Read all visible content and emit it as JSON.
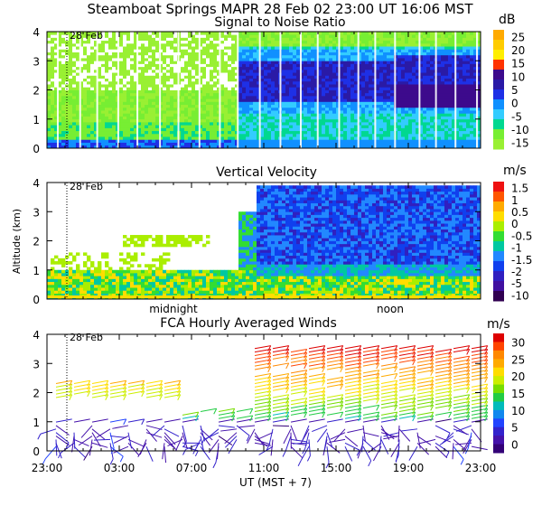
{
  "title": "Steamboat Springs  MAPR 28 Feb 02  23:00 UT  16:06  MST",
  "date_marker": "28 Feb",
  "x_axis": {
    "label": "UT  (MST + 7)",
    "ticks": [
      "23:00",
      "03:00",
      "07:00",
      "11:00",
      "15:00",
      "19:00",
      "23:00"
    ],
    "tick_hours": [
      0,
      4,
      8,
      12,
      16,
      20,
      24
    ],
    "local_labels": [
      "midnight",
      "noon"
    ],
    "local_hours": [
      7,
      19
    ],
    "range_hours": [
      0,
      24
    ],
    "date_marker_hour": 1.25
  },
  "chart_data": [
    {
      "type": "heatmap",
      "title": "Signal to Noise Ratio",
      "ylabel": "",
      "units": "dB",
      "ylim": [
        0,
        4
      ],
      "yticks": [
        "0",
        "1",
        "2",
        "3",
        "4"
      ],
      "colorbar": {
        "labels": [
          "25",
          "20",
          "15",
          "10",
          "5",
          "0",
          "-5",
          "-10",
          "-15"
        ],
        "colors": [
          "#ffaa00",
          "#ffcc00",
          "#ffee00",
          "#ff3300",
          "#3d0a8c",
          "#2a1aa6",
          "#1e30e6",
          "#1090ff",
          "#33ccff",
          "#00d890",
          "#77ee33",
          "#99f033"
        ]
      },
      "summary": "Weak SNR (-15 to -10 dB) before ~10:00 UT; strong 0 to 10 dB layer between 1.5 and 3.5 km after 11:00 UT"
    },
    {
      "type": "heatmap",
      "title": "Vertical Velocity",
      "ylabel": "Altitude (km)",
      "units": "m/s",
      "ylim": [
        0,
        4
      ],
      "yticks": [
        "0",
        "1",
        "2",
        "3",
        "4"
      ],
      "colorbar": {
        "labels": [
          "1.5",
          "1",
          "0.5",
          "0",
          "-0.5",
          "-1",
          "-1.5",
          "-2",
          "-5",
          "-10"
        ],
        "colors": [
          "#ee1111",
          "#ff5500",
          "#ffaa00",
          "#ffdd00",
          "#aaee00",
          "#33dd33",
          "#00c8a0",
          "#2288ff",
          "#1040ee",
          "#3020c0",
          "#4010a0",
          "#300050"
        ]
      },
      "summary": "Mostly downward motion (-1 to -2 m/s) in the deep layer after 11:00 UT; mixed near-zero values in the lowest km"
    },
    {
      "type": "scatter",
      "title": "FCA Hourly Averaged Winds",
      "ylabel": "",
      "units": "m/s",
      "ylim": [
        0,
        4
      ],
      "yticks": [
        "0",
        "1",
        "2",
        "3",
        "4"
      ],
      "colorbar": {
        "labels": [
          "30",
          "25",
          "20",
          "15",
          "10",
          "5",
          "0"
        ],
        "colors": [
          "#dd0000",
          "#ff4400",
          "#ff8800",
          "#ffaa00",
          "#ffdd00",
          "#ccee00",
          "#77dd00",
          "#22cc44",
          "#00bbbb",
          "#1188ee",
          "#2244ff",
          "#3322cc",
          "#4411aa",
          "#330077"
        ]
      },
      "summary": "Wind barbs: light winds (0-5 m/s) below 1 km; westerlies strengthening with height, 15-30 m/s at 2.5-3.5 km after 11:00 UT"
    }
  ]
}
